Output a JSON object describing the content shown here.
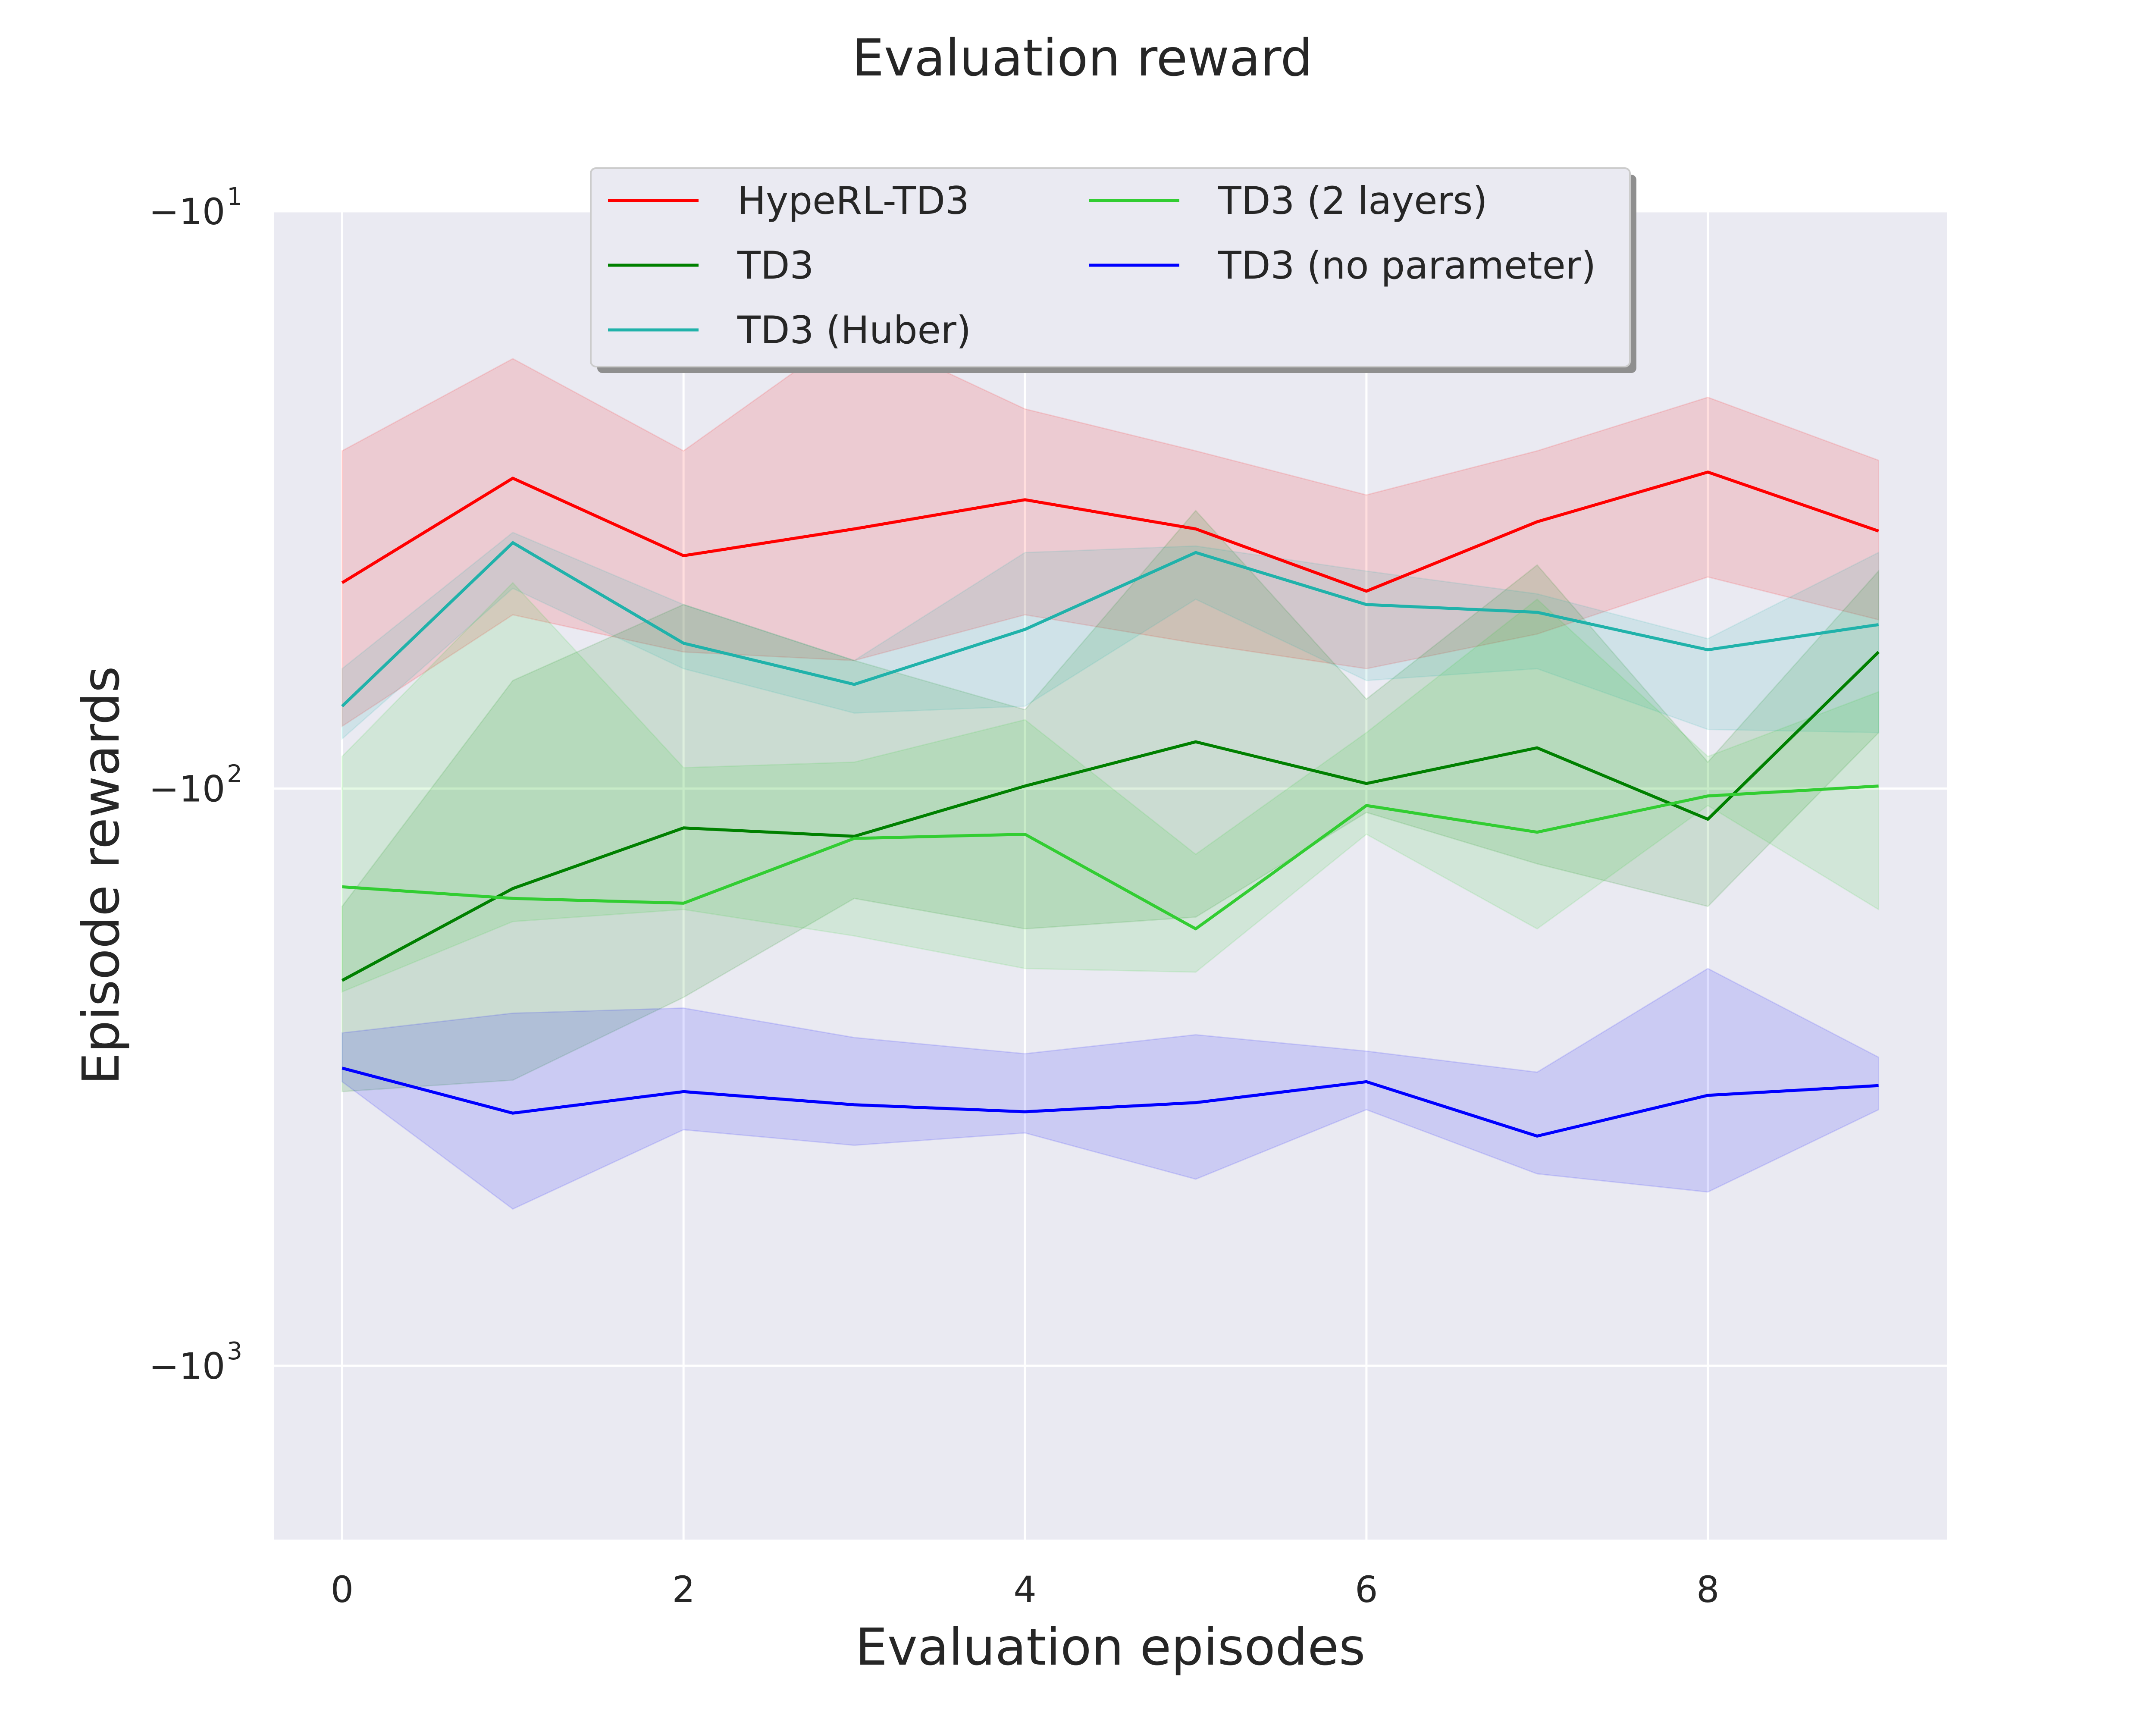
{
  "chart_data": {
    "type": "line",
    "title": "Evaluation reward",
    "xlabel": "Evaluation episodes",
    "ylabel": "Episode rewards",
    "yscale": "symlog-negative",
    "grid": true,
    "legend_position": "top-center",
    "xlim": [
      -0.4,
      9.4
    ],
    "ylim": [
      -2000,
      -10
    ],
    "x_ticks": [
      "0",
      "2",
      "4",
      "6",
      "8"
    ],
    "y_ticks": [
      {
        "value": -10,
        "base": "−10",
        "exp": "1"
      },
      {
        "value": -100,
        "base": "−10",
        "exp": "2"
      },
      {
        "value": -1000,
        "base": "−10",
        "exp": "3"
      }
    ],
    "x": [
      0,
      1,
      2,
      3,
      4,
      5,
      6,
      7,
      8,
      9
    ],
    "series": [
      {
        "name": "HypeRL-TD3",
        "color": "#ff0000",
        "values": [
          -44,
          -29,
          -39.5,
          -35.5,
          -31.6,
          -35.5,
          -45.5,
          -34.5,
          -28.3,
          -35.8
        ],
        "lower": [
          -78,
          -50,
          -58,
          -60,
          -50,
          -56,
          -62,
          -54,
          -43,
          -51
        ],
        "upper": [
          -26,
          -18,
          -26,
          -16,
          -22,
          -26,
          -31,
          -26,
          -21,
          -27
        ]
      },
      {
        "name": "TD3",
        "color": "#008000",
        "values": [
          -215,
          -149,
          -117,
          -121,
          -99,
          -83,
          -98,
          -85,
          -113,
          -58
        ],
        "lower": [
          -335,
          -320,
          -230,
          -155,
          -175,
          -167,
          -110,
          -135,
          -160,
          -80
        ],
        "upper": [
          -160,
          -65,
          -48,
          -60,
          -73,
          -33,
          -70,
          -41,
          -90,
          -42
        ]
      },
      {
        "name": "TD3 (Huber)",
        "color": "#20b2aa",
        "values": [
          -72,
          -37.5,
          -56,
          -66,
          -53,
          -39,
          -48,
          -49.5,
          -57.5,
          -52
        ],
        "lower": [
          -82,
          -45,
          -62,
          -74,
          -72,
          -47,
          -65,
          -62,
          -79,
          -80
        ],
        "upper": [
          -62,
          -36,
          -48,
          -60,
          -39,
          -38,
          -42,
          -46,
          -55,
          -39
        ]
      },
      {
        "name": "TD3 (2 layers)",
        "color": "#32cd32",
        "values": [
          -148,
          -155,
          -158,
          -122,
          -120,
          -175,
          -107,
          -119,
          -103,
          -99
        ],
        "lower": [
          -225,
          -170,
          -162,
          -180,
          -205,
          -208,
          -120,
          -175,
          -107,
          -162
        ],
        "upper": [
          -88,
          -44,
          -92,
          -90,
          -76,
          -130,
          -80,
          -47,
          -88,
          -68
        ]
      },
      {
        "name": "TD3 (no parameter)",
        "color": "#0000ff",
        "values": [
          -305,
          -365,
          -335,
          -353,
          -363,
          -350,
          -322,
          -400,
          -340,
          -327
        ],
        "lower": [
          -322,
          -535,
          -390,
          -415,
          -395,
          -475,
          -360,
          -465,
          -500,
          -360
        ],
        "upper": [
          -265,
          -245,
          -240,
          -270,
          -288,
          -267,
          -285,
          -310,
          -205,
          -292
        ]
      }
    ]
  }
}
